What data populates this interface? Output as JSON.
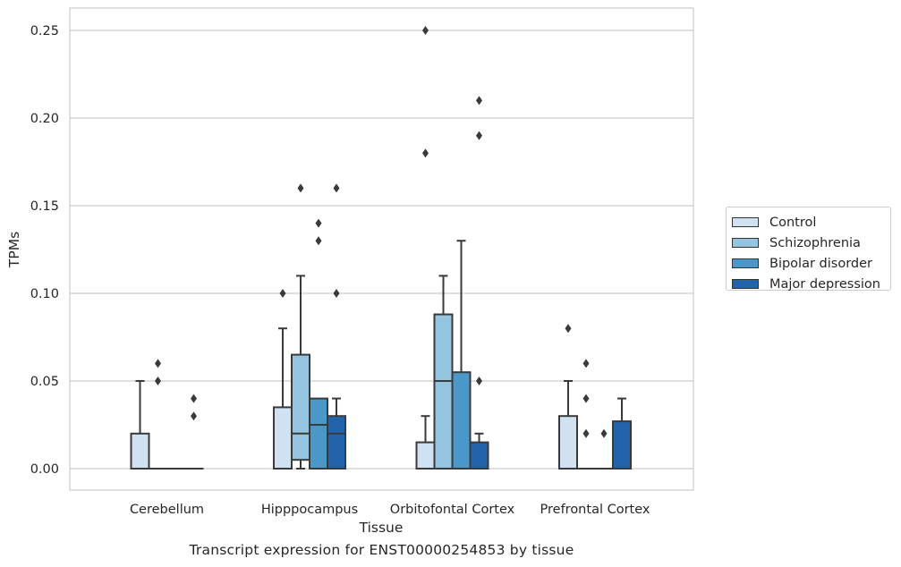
{
  "caption": "Transcript expression for ENST00000254853 by tissue",
  "chart_data": {
    "type": "box",
    "xlabel": "Tissue",
    "ylabel": "TPMs",
    "categories": [
      "Cerebellum",
      "Hipppocampus",
      "Orbitofontal Cortex",
      "Prefrontal Cortex"
    ],
    "ylim": [
      -0.012,
      0.263
    ],
    "yticks": [
      0.0,
      0.05,
      0.1,
      0.15,
      0.2,
      0.25
    ],
    "ytick_labels": [
      "0.00",
      "0.05",
      "0.10",
      "0.15",
      "0.20",
      "0.25"
    ],
    "grid": "horizontal",
    "legend_position": "outside-right",
    "series": [
      {
        "name": "Control",
        "color": "#d0e1f2",
        "boxes": [
          {
            "q1": 0.0,
            "median": 0.0,
            "q3": 0.02,
            "whisker_low": 0.0,
            "whisker_high": 0.05,
            "outliers": []
          },
          {
            "q1": 0.0,
            "median": 0.0,
            "q3": 0.035,
            "whisker_low": 0.0,
            "whisker_high": 0.08,
            "outliers": [
              0.1
            ]
          },
          {
            "q1": 0.0,
            "median": 0.0,
            "q3": 0.015,
            "whisker_low": 0.0,
            "whisker_high": 0.03,
            "outliers": [
              0.18,
              0.25
            ]
          },
          {
            "q1": 0.0,
            "median": 0.0,
            "q3": 0.03,
            "whisker_low": 0.0,
            "whisker_high": 0.05,
            "outliers": [
              0.08
            ]
          }
        ]
      },
      {
        "name": "Schizophrenia",
        "color": "#94c4df",
        "boxes": [
          {
            "q1": 0.0,
            "median": 0.0,
            "q3": 0.0,
            "whisker_low": 0.0,
            "whisker_high": 0.0,
            "outliers": [
              0.05,
              0.06
            ]
          },
          {
            "q1": 0.005,
            "median": 0.02,
            "q3": 0.065,
            "whisker_low": 0.0,
            "whisker_high": 0.11,
            "outliers": [
              0.16
            ]
          },
          {
            "q1": 0.0,
            "median": 0.05,
            "q3": 0.088,
            "whisker_low": 0.0,
            "whisker_high": 0.11,
            "outliers": []
          },
          {
            "q1": 0.0,
            "median": 0.0,
            "q3": 0.0,
            "whisker_low": 0.0,
            "whisker_high": 0.0,
            "outliers": [
              0.02,
              0.04,
              0.06
            ]
          }
        ]
      },
      {
        "name": "Bipolar disorder",
        "color": "#4a98c9",
        "boxes": [
          {
            "q1": 0.0,
            "median": 0.0,
            "q3": 0.0,
            "whisker_low": 0.0,
            "whisker_high": 0.0,
            "outliers": []
          },
          {
            "q1": 0.0,
            "median": 0.025,
            "q3": 0.04,
            "whisker_low": 0.0,
            "whisker_high": 0.04,
            "outliers": [
              0.13,
              0.14
            ]
          },
          {
            "q1": 0.0,
            "median": 0.0,
            "q3": 0.055,
            "whisker_low": 0.0,
            "whisker_high": 0.13,
            "outliers": []
          },
          {
            "q1": 0.0,
            "median": 0.0,
            "q3": 0.0,
            "whisker_low": 0.0,
            "whisker_high": 0.0,
            "outliers": [
              0.02
            ]
          }
        ]
      },
      {
        "name": "Major depression",
        "color": "#2164ab",
        "boxes": [
          {
            "q1": 0.0,
            "median": 0.0,
            "q3": 0.0,
            "whisker_low": 0.0,
            "whisker_high": 0.0,
            "outliers": [
              0.03,
              0.04
            ]
          },
          {
            "q1": 0.0,
            "median": 0.02,
            "q3": 0.03,
            "whisker_low": 0.0,
            "whisker_high": 0.04,
            "outliers": [
              0.1,
              0.16
            ]
          },
          {
            "q1": 0.0,
            "median": 0.0,
            "q3": 0.015,
            "whisker_low": 0.0,
            "whisker_high": 0.02,
            "outliers": [
              0.05,
              0.19,
              0.21
            ]
          },
          {
            "q1": 0.0,
            "median": 0.0,
            "q3": 0.027,
            "whisker_low": 0.0,
            "whisker_high": 0.04,
            "outliers": []
          }
        ]
      }
    ]
  }
}
